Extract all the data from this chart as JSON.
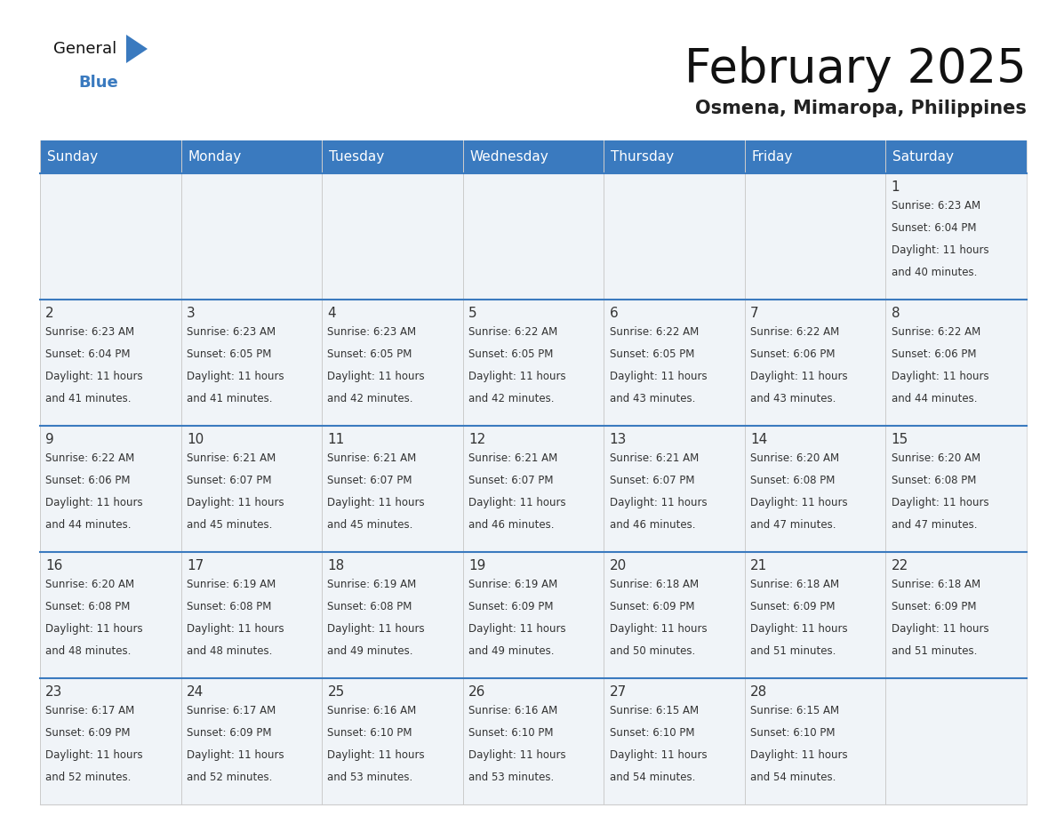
{
  "title": "February 2025",
  "subtitle": "Osmena, Mimaropa, Philippines",
  "days_of_week": [
    "Sunday",
    "Monday",
    "Tuesday",
    "Wednesday",
    "Thursday",
    "Friday",
    "Saturday"
  ],
  "header_bg": "#3a7abf",
  "header_text": "#ffffff",
  "cell_bg": "#f0f4f8",
  "divider_color": "#3a7abf",
  "text_color": "#333333",
  "border_color": "#cccccc",
  "calendar_data": [
    {
      "day": 1,
      "col": 6,
      "row": 0,
      "sunrise": "6:23 AM",
      "sunset": "6:04 PM",
      "daylight_mins": "40"
    },
    {
      "day": 2,
      "col": 0,
      "row": 1,
      "sunrise": "6:23 AM",
      "sunset": "6:04 PM",
      "daylight_mins": "41"
    },
    {
      "day": 3,
      "col": 1,
      "row": 1,
      "sunrise": "6:23 AM",
      "sunset": "6:05 PM",
      "daylight_mins": "41"
    },
    {
      "day": 4,
      "col": 2,
      "row": 1,
      "sunrise": "6:23 AM",
      "sunset": "6:05 PM",
      "daylight_mins": "42"
    },
    {
      "day": 5,
      "col": 3,
      "row": 1,
      "sunrise": "6:22 AM",
      "sunset": "6:05 PM",
      "daylight_mins": "42"
    },
    {
      "day": 6,
      "col": 4,
      "row": 1,
      "sunrise": "6:22 AM",
      "sunset": "6:05 PM",
      "daylight_mins": "43"
    },
    {
      "day": 7,
      "col": 5,
      "row": 1,
      "sunrise": "6:22 AM",
      "sunset": "6:06 PM",
      "daylight_mins": "43"
    },
    {
      "day": 8,
      "col": 6,
      "row": 1,
      "sunrise": "6:22 AM",
      "sunset": "6:06 PM",
      "daylight_mins": "44"
    },
    {
      "day": 9,
      "col": 0,
      "row": 2,
      "sunrise": "6:22 AM",
      "sunset": "6:06 PM",
      "daylight_mins": "44"
    },
    {
      "day": 10,
      "col": 1,
      "row": 2,
      "sunrise": "6:21 AM",
      "sunset": "6:07 PM",
      "daylight_mins": "45"
    },
    {
      "day": 11,
      "col": 2,
      "row": 2,
      "sunrise": "6:21 AM",
      "sunset": "6:07 PM",
      "daylight_mins": "45"
    },
    {
      "day": 12,
      "col": 3,
      "row": 2,
      "sunrise": "6:21 AM",
      "sunset": "6:07 PM",
      "daylight_mins": "46"
    },
    {
      "day": 13,
      "col": 4,
      "row": 2,
      "sunrise": "6:21 AM",
      "sunset": "6:07 PM",
      "daylight_mins": "46"
    },
    {
      "day": 14,
      "col": 5,
      "row": 2,
      "sunrise": "6:20 AM",
      "sunset": "6:08 PM",
      "daylight_mins": "47"
    },
    {
      "day": 15,
      "col": 6,
      "row": 2,
      "sunrise": "6:20 AM",
      "sunset": "6:08 PM",
      "daylight_mins": "47"
    },
    {
      "day": 16,
      "col": 0,
      "row": 3,
      "sunrise": "6:20 AM",
      "sunset": "6:08 PM",
      "daylight_mins": "48"
    },
    {
      "day": 17,
      "col": 1,
      "row": 3,
      "sunrise": "6:19 AM",
      "sunset": "6:08 PM",
      "daylight_mins": "48"
    },
    {
      "day": 18,
      "col": 2,
      "row": 3,
      "sunrise": "6:19 AM",
      "sunset": "6:08 PM",
      "daylight_mins": "49"
    },
    {
      "day": 19,
      "col": 3,
      "row": 3,
      "sunrise": "6:19 AM",
      "sunset": "6:09 PM",
      "daylight_mins": "49"
    },
    {
      "day": 20,
      "col": 4,
      "row": 3,
      "sunrise": "6:18 AM",
      "sunset": "6:09 PM",
      "daylight_mins": "50"
    },
    {
      "day": 21,
      "col": 5,
      "row": 3,
      "sunrise": "6:18 AM",
      "sunset": "6:09 PM",
      "daylight_mins": "51"
    },
    {
      "day": 22,
      "col": 6,
      "row": 3,
      "sunrise": "6:18 AM",
      "sunset": "6:09 PM",
      "daylight_mins": "51"
    },
    {
      "day": 23,
      "col": 0,
      "row": 4,
      "sunrise": "6:17 AM",
      "sunset": "6:09 PM",
      "daylight_mins": "52"
    },
    {
      "day": 24,
      "col": 1,
      "row": 4,
      "sunrise": "6:17 AM",
      "sunset": "6:09 PM",
      "daylight_mins": "52"
    },
    {
      "day": 25,
      "col": 2,
      "row": 4,
      "sunrise": "6:16 AM",
      "sunset": "6:10 PM",
      "daylight_mins": "53"
    },
    {
      "day": 26,
      "col": 3,
      "row": 4,
      "sunrise": "6:16 AM",
      "sunset": "6:10 PM",
      "daylight_mins": "53"
    },
    {
      "day": 27,
      "col": 4,
      "row": 4,
      "sunrise": "6:15 AM",
      "sunset": "6:10 PM",
      "daylight_mins": "54"
    },
    {
      "day": 28,
      "col": 5,
      "row": 4,
      "sunrise": "6:15 AM",
      "sunset": "6:10 PM",
      "daylight_mins": "54"
    }
  ],
  "num_rows": 5,
  "num_cols": 7,
  "title_fontsize": 38,
  "subtitle_fontsize": 15,
  "header_fontsize": 11,
  "day_number_fontsize": 11,
  "cell_text_fontsize": 8.5
}
